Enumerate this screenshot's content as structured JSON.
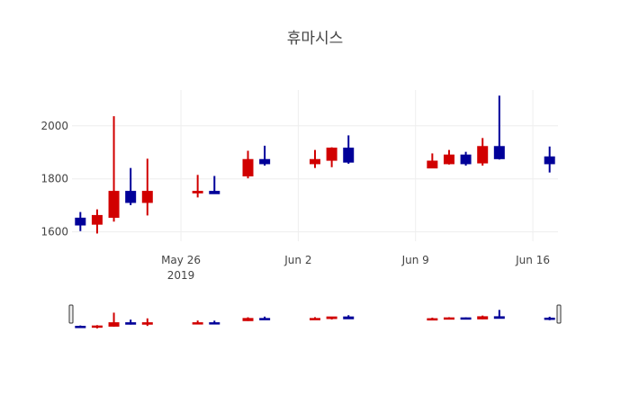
{
  "chart_data": {
    "type": "candlestick",
    "title": "휴마시스",
    "xlabel": "",
    "ylabel": "",
    "ylim": [
      1565,
      2135
    ],
    "yticks": [
      1600,
      1800,
      2000
    ],
    "xticks": [
      {
        "date": "2019-05-26",
        "label": "May 26",
        "sublabel": "2019"
      },
      {
        "date": "2019-06-02",
        "label": "Jun 2",
        "sublabel": ""
      },
      {
        "date": "2019-06-09",
        "label": "Jun 9",
        "sublabel": ""
      },
      {
        "date": "2019-06-16",
        "label": "Jun 16",
        "sublabel": ""
      }
    ],
    "xrange": [
      "2019-05-19T12:00",
      "2019-06-17T12:00"
    ],
    "grid": true,
    "legend": false,
    "rangeslider": true,
    "increasing_color": "#d10000",
    "decreasing_color": "#000099",
    "candles": [
      {
        "date": "2019-05-20",
        "open": 1652,
        "high": 1675,
        "low": 1603,
        "close": 1626
      },
      {
        "date": "2019-05-21",
        "open": 1629,
        "high": 1685,
        "low": 1594,
        "close": 1662
      },
      {
        "date": "2019-05-22",
        "open": 1655,
        "high": 2036,
        "low": 1639,
        "close": 1753
      },
      {
        "date": "2019-05-23",
        "open": 1753,
        "high": 1841,
        "low": 1701,
        "close": 1711
      },
      {
        "date": "2019-05-24",
        "open": 1711,
        "high": 1876,
        "low": 1662,
        "close": 1753
      },
      {
        "date": "2019-05-27",
        "open": 1747,
        "high": 1815,
        "low": 1730,
        "close": 1753
      },
      {
        "date": "2019-05-28",
        "open": 1753,
        "high": 1811,
        "low": 1744,
        "close": 1744
      },
      {
        "date": "2019-05-30",
        "open": 1811,
        "high": 1906,
        "low": 1802,
        "close": 1873
      },
      {
        "date": "2019-05-31",
        "open": 1873,
        "high": 1925,
        "low": 1850,
        "close": 1857
      },
      {
        "date": "2019-06-03",
        "open": 1857,
        "high": 1909,
        "low": 1841,
        "close": 1873
      },
      {
        "date": "2019-06-04",
        "open": 1870,
        "high": 1919,
        "low": 1844,
        "close": 1916
      },
      {
        "date": "2019-06-05",
        "open": 1916,
        "high": 1964,
        "low": 1857,
        "close": 1863
      },
      {
        "date": "2019-06-10",
        "open": 1841,
        "high": 1896,
        "low": 1841,
        "close": 1867
      },
      {
        "date": "2019-06-11",
        "open": 1857,
        "high": 1909,
        "low": 1854,
        "close": 1890
      },
      {
        "date": "2019-06-12",
        "open": 1890,
        "high": 1902,
        "low": 1850,
        "close": 1857
      },
      {
        "date": "2019-06-13",
        "open": 1860,
        "high": 1954,
        "low": 1850,
        "close": 1922
      },
      {
        "date": "2019-06-14",
        "open": 1922,
        "high": 2114,
        "low": 1873,
        "close": 1876
      },
      {
        "date": "2019-06-17",
        "open": 1883,
        "high": 1922,
        "low": 1824,
        "close": 1857
      }
    ]
  }
}
